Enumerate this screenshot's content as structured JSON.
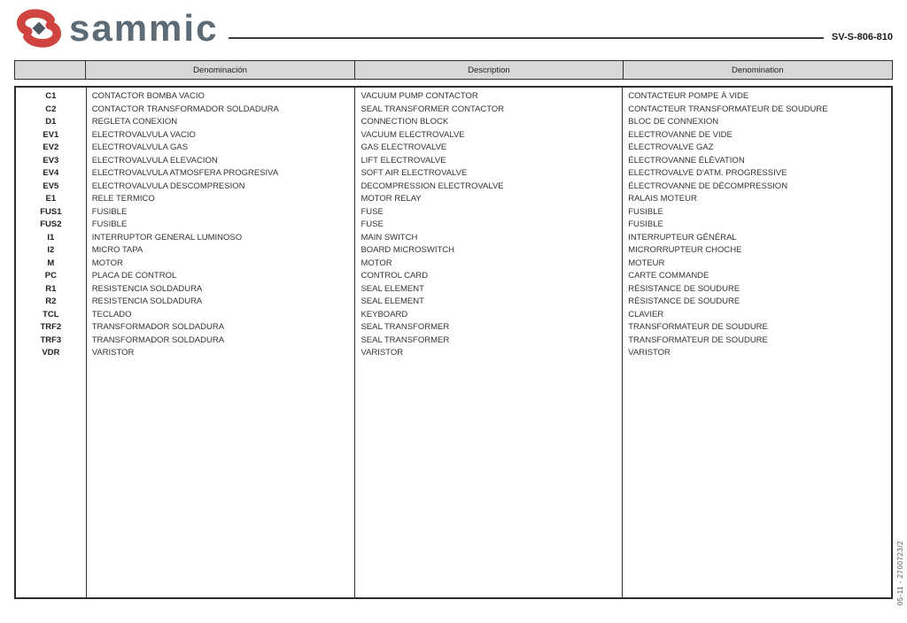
{
  "header": {
    "logo_text": "sammic",
    "doc_number": "SV-S-806-810"
  },
  "colors": {
    "logo_red": "#cf4440",
    "logo_slate": "#5d6b77",
    "logo_diamond": "#4e5a64",
    "table_header_bg": "#d7d7d7",
    "border": "#2e2e2e"
  },
  "table": {
    "headers": [
      "",
      "Denominación",
      "Description",
      "Denomination"
    ],
    "rows": [
      {
        "code": "C1",
        "es": "CONTACTOR BOMBA VACIO",
        "en": "VACUUM PUMP CONTACTOR",
        "fr": "CONTACTEUR POMPE À VIDE"
      },
      {
        "code": "C2",
        "es": "CONTACTOR TRANSFORMADOR SOLDADURA",
        "en": "SEAL TRANSFORMER CONTACTOR",
        "fr": "CONTACTEUR TRANSFORMATEUR DE SOUDURE"
      },
      {
        "code": "D1",
        "es": "REGLETA CONEXION",
        "en": "CONNECTION BLOCK",
        "fr": "BLOC DE CONNEXION"
      },
      {
        "code": "EV1",
        "es": "ELECTROVALVULA VACIO",
        "en": "VACUUM ELECTROVALVE",
        "fr": "ELECTROVANNE DE VIDE"
      },
      {
        "code": "EV2",
        "es": "ELECTROVALVULA GAS",
        "en": "GAS ELECTROVALVE",
        "fr": "ÉLECTROVALVE GAZ"
      },
      {
        "code": "EV3",
        "es": "ELECTROVALVULA ELEVACION",
        "en": "LIFT ELECTROVALVE",
        "fr": "ÉLECTROVANNE ÉLÉVATION"
      },
      {
        "code": "EV4",
        "es": "ELECTROVALVULA ATMOSFERA PROGRESIVA",
        "en": "SOFT AIR ELECTROVALVE",
        "fr": "ELECTROVALVE D'ATM. PROGRESSIVE"
      },
      {
        "code": "EV5",
        "es": "ELECTROVALVULA DESCOMPRESION",
        "en": "DECOMPRESSION ELECTROVALVE",
        "fr": "ÉLECTROVANNE DE DÉCOMPRESSION"
      },
      {
        "code": "E1",
        "es": "RELE TERMICO",
        "en": "MOTOR RELAY",
        "fr": "RALAIS MOTEUR"
      },
      {
        "code": "FUS1",
        "es": "FUSIBLE",
        "en": "FUSE",
        "fr": "FUSIBLE"
      },
      {
        "code": "FUS2",
        "es": "FUSIBLE",
        "en": "FUSE",
        "fr": "FUSIBLE"
      },
      {
        "code": "I1",
        "es": "INTERRUPTOR GENERAL LUMINOSO",
        "en": "MAIN SWITCH",
        "fr": "INTERRUPTEUR GÉNÉRAL"
      },
      {
        "code": "I2",
        "es": "MICRO TAPA",
        "en": "BOARD MICROSWITCH",
        "fr": "MICRORRUPTEUR CHOCHE"
      },
      {
        "code": "M",
        "es": "MOTOR",
        "en": "MOTOR",
        "fr": "MOTEUR"
      },
      {
        "code": "PC",
        "es": "PLACA DE CONTROL",
        "en": "CONTROL CARD",
        "fr": "CARTE COMMANDE"
      },
      {
        "code": "R1",
        "es": "RESISTENCIA SOLDADURA",
        "en": "SEAL ELEMENT",
        "fr": "RÉSISTANCE DE SOUDURE"
      },
      {
        "code": "R2",
        "es": "RESISTENCIA SOLDADURA",
        "en": "SEAL ELEMENT",
        "fr": "RÉSISTANCE DE SOUDURE"
      },
      {
        "code": "TCL",
        "es": "TECLADO",
        "en": "KEYBOARD",
        "fr": "CLAVIER"
      },
      {
        "code": "TRF2",
        "es": "TRANSFORMADOR SOLDADURA",
        "en": "SEAL TRANSFORMER",
        "fr": "TRANSFORMATEUR DE SOUDURE"
      },
      {
        "code": "TRF3",
        "es": "TRANSFORMADOR SOLDADURA",
        "en": "SEAL TRANSFORMER",
        "fr": "TRANSFORMATEUR DE SOUDURE"
      },
      {
        "code": "VDR",
        "es": "VARISTOR",
        "en": "VARISTOR",
        "fr": "VARISTOR"
      }
    ]
  },
  "side_note": "05-11 - 2700723/2"
}
